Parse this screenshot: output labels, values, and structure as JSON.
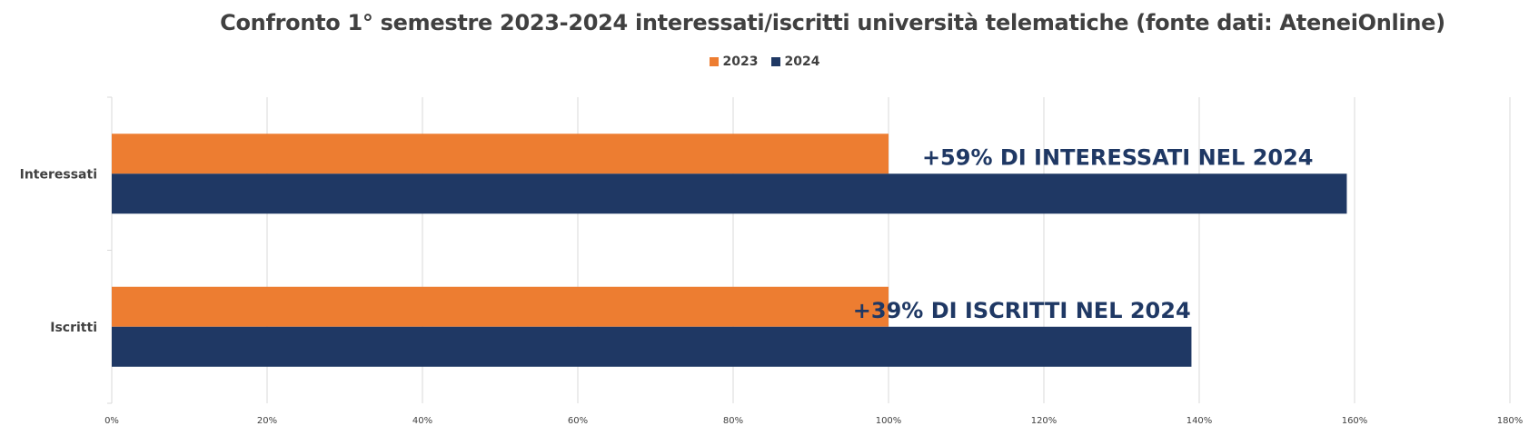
{
  "chart_data": {
    "type": "bar",
    "orientation": "horizontal",
    "title": "Confronto 1° semestre 2023-2024 interessati/iscritti università telematiche (fonte dati: AteneiOnline)",
    "categories": [
      "Interessati",
      "Iscritti"
    ],
    "series": [
      {
        "name": "2023",
        "color": "#ed7d31",
        "values": [
          100,
          100
        ]
      },
      {
        "name": "2024",
        "color": "#1f3864",
        "values": [
          159,
          139
        ]
      }
    ],
    "xlim": [
      0,
      180
    ],
    "x_ticks": [
      "0%",
      "20%",
      "40%",
      "60%",
      "80%",
      "100%",
      "120%",
      "140%",
      "160%",
      "180%"
    ],
    "grid": true,
    "legend_position": "top",
    "annotations": [
      {
        "text": "+59% DI INTERESSATI NEL 2024",
        "category": "Interessati"
      },
      {
        "text": "+39% DI ISCRITTI NEL 2024",
        "category": "Iscritti"
      }
    ]
  }
}
